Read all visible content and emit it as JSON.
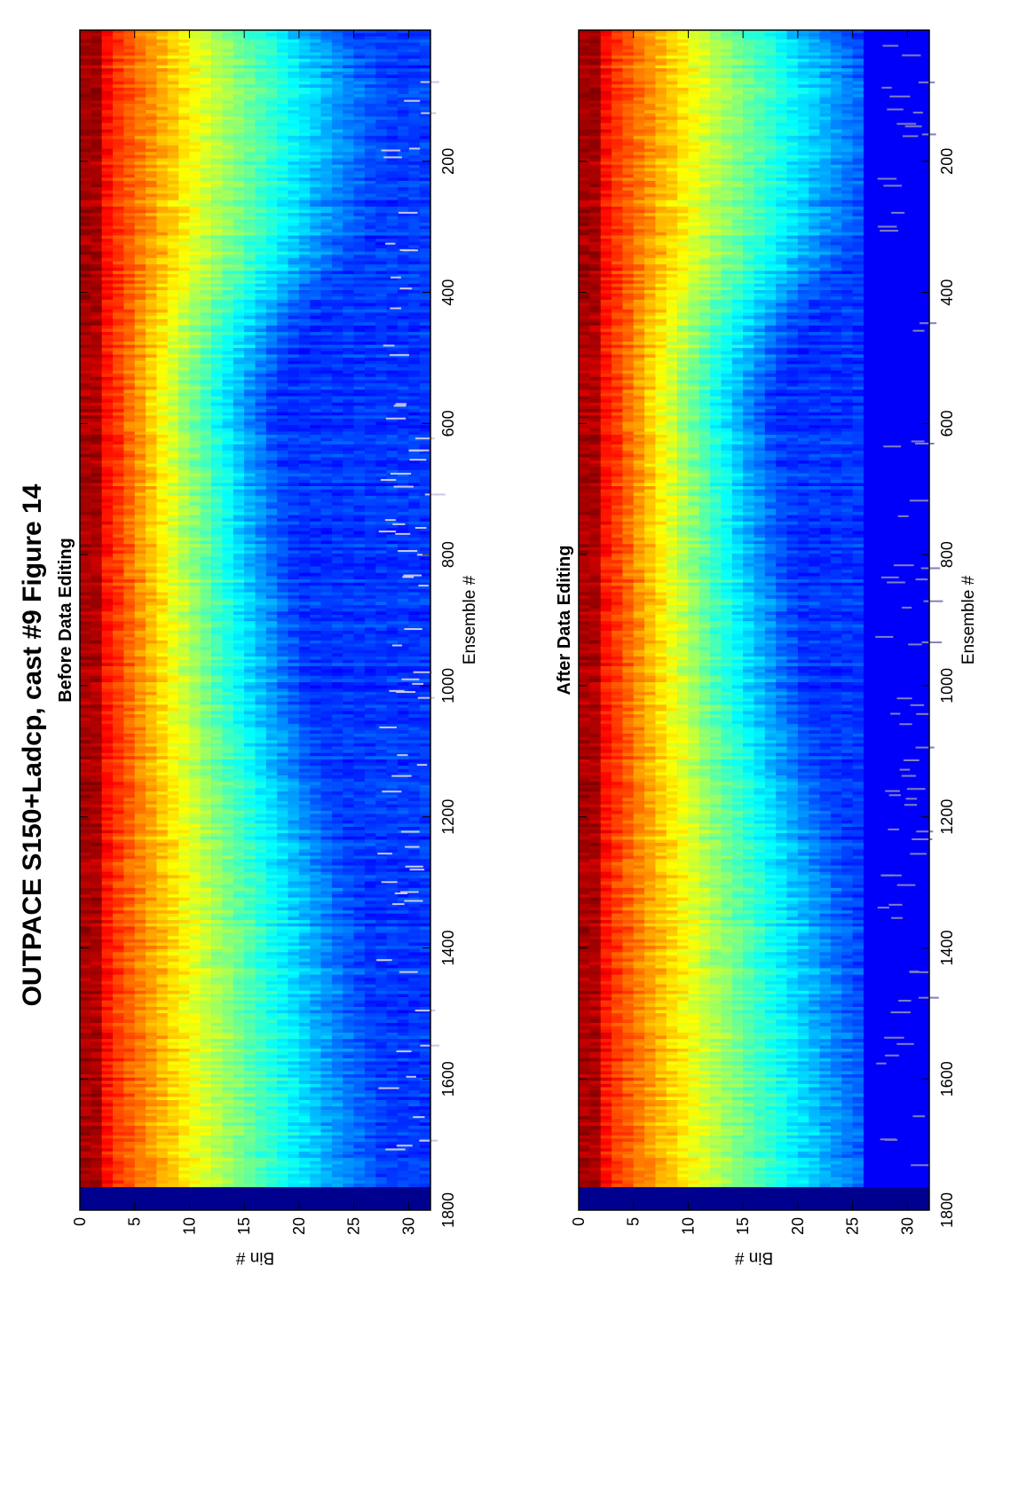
{
  "figure": {
    "title": "OUTPACE S150+Ladcp, cast #9  Figure 14"
  },
  "chart_data": [
    {
      "type": "heatmap",
      "title": "Before Data Editing",
      "xlabel": "Ensemble #",
      "ylabel": "Bin #",
      "xlim": [
        0,
        1800
      ],
      "ylim": [
        0,
        32
      ],
      "xticks": [
        "200",
        "400",
        "600",
        "800",
        "1000",
        "1200",
        "1400",
        "1600",
        "1800"
      ],
      "yticks": [
        "0",
        "5",
        "10",
        "15",
        "20",
        "25",
        "30"
      ],
      "colormap": "jet",
      "grid": false,
      "data_extent_ensembles": [
        0,
        1765
      ]
    },
    {
      "type": "heatmap",
      "title": "After Data Editing",
      "xlabel": "Ensemble #",
      "ylabel": "Bin #",
      "xlim": [
        0,
        1800
      ],
      "ylim": [
        0,
        32
      ],
      "xticks": [
        "200",
        "400",
        "600",
        "800",
        "1000",
        "1200",
        "1400",
        "1600",
        "1800"
      ],
      "yticks": [
        "0",
        "5",
        "10",
        "15",
        "20",
        "25",
        "30"
      ],
      "colormap": "jet",
      "grid": false,
      "data_extent_ensembles": [
        0,
        1765
      ]
    }
  ]
}
